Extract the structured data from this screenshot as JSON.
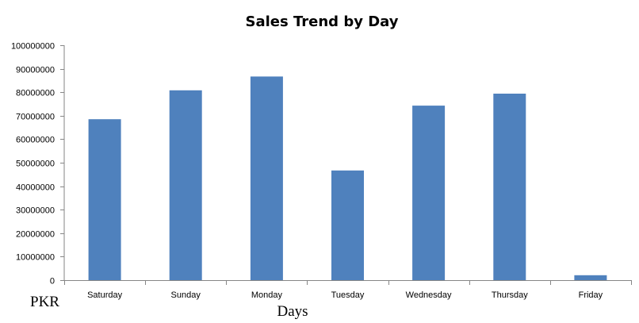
{
  "chart_data": {
    "type": "bar",
    "title": "Sales Trend by Day",
    "xlabel": "Days",
    "ylabel": "PKR",
    "categories": [
      "Saturday",
      "Sunday",
      "Monday",
      "Tuesday",
      "Wednesday",
      "Thursday",
      "Friday"
    ],
    "values": [
      68500000,
      80800000,
      86700000,
      46700000,
      74300000,
      79400000,
      2100000
    ],
    "ylim": [
      0,
      100000000
    ],
    "yticks": [
      "0",
      "10000000",
      "20000000",
      "30000000",
      "40000000",
      "50000000",
      "60000000",
      "70000000",
      "80000000",
      "90000000",
      "100000000"
    ],
    "grid": false,
    "legend": "none",
    "bar_color": "#4f81bd",
    "axis_color": "#868686"
  }
}
